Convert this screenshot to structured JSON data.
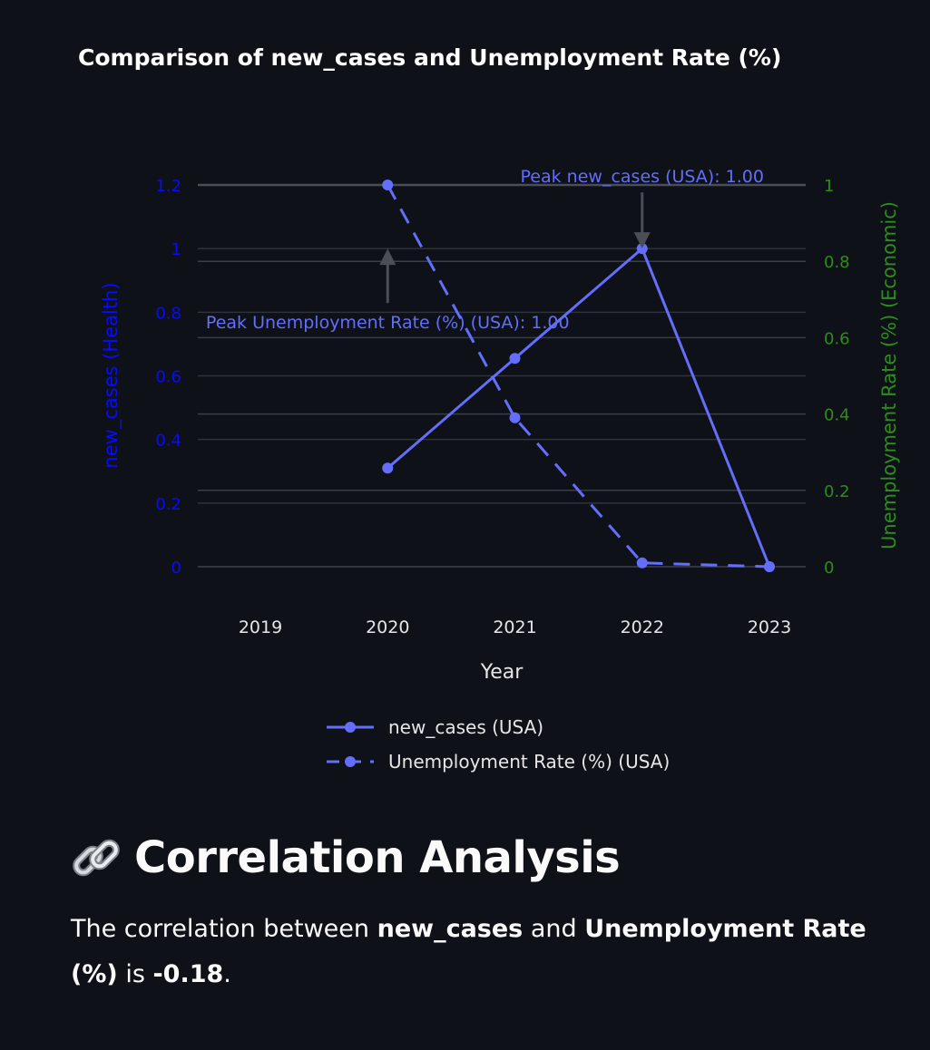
{
  "chart_data": {
    "type": "line",
    "title": "Comparison of new_cases and Unemployment Rate (%)",
    "xlabel": "Year",
    "ylabel_left": "new_cases (Health)",
    "ylabel_right": "Unemployment Rate (%) (Economic)",
    "x_ticks": [
      "2019",
      "2020",
      "2021",
      "2022",
      "2023"
    ],
    "y_left_ticks": [
      "0",
      "0.2",
      "0.4",
      "0.6",
      "0.8",
      "1",
      "1.2"
    ],
    "y_right_ticks": [
      "0",
      "0.2",
      "0.4",
      "0.6",
      "0.8",
      "1"
    ],
    "y_left_range": [
      0,
      1.2
    ],
    "y_right_range": [
      0,
      1
    ],
    "series": [
      {
        "name": "new_cases (USA)",
        "axis": "left",
        "dash": "solid",
        "x": [
          2020,
          2021,
          2022,
          2023
        ],
        "values": [
          0.31,
          0.655,
          1.0,
          0.0
        ]
      },
      {
        "name": "Unemployment Rate (%) (USA)",
        "axis": "right",
        "dash": "dashed",
        "x": [
          2020,
          2021,
          2022,
          2023
        ],
        "values": [
          1.0,
          0.39,
          0.01,
          0.0
        ]
      }
    ],
    "annotations": [
      {
        "text": "Peak new_cases (USA): 1.00",
        "x": 2022,
        "y": 1.0,
        "axis": "left"
      },
      {
        "text": "Peak Unemployment Rate (%) (USA): 1.00",
        "x": 2020,
        "y": 1.0,
        "axis": "right"
      }
    ],
    "grid": true,
    "legend_position": "bottom-center",
    "colors": {
      "series": "#636efa",
      "left_axis": "#0a0aff",
      "right_axis": "#2e8b1e",
      "background": "#0e1117"
    }
  },
  "section": {
    "icon": "link-icon",
    "heading": "Correlation Analysis",
    "text_1": "The correlation between ",
    "var_1": "new_cases",
    "text_2": " and ",
    "var_2": "Unemployment Rate (%)",
    "text_3": " is ",
    "value": "-0.18",
    "text_4": "."
  }
}
